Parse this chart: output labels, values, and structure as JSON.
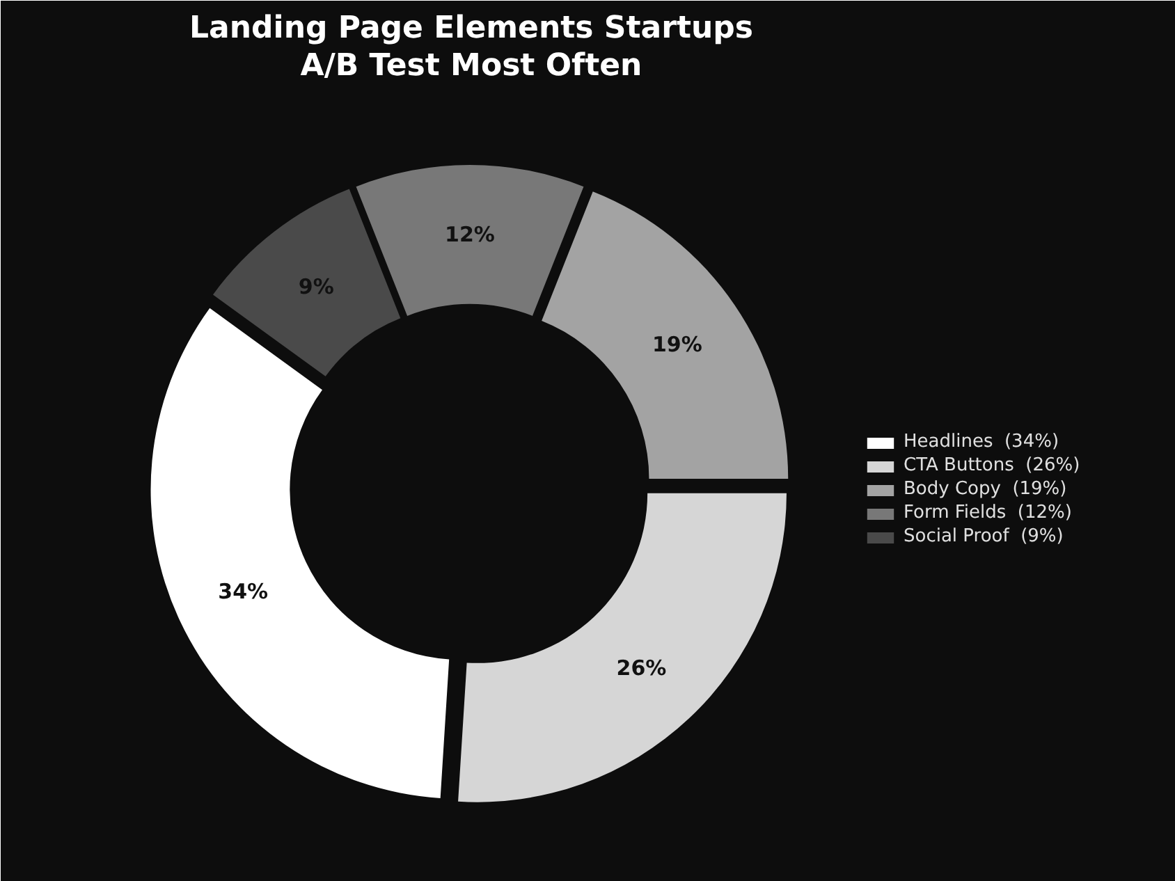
{
  "chart_data": {
    "type": "donut",
    "title": "Landing Page Elements Startups\nA/B Test Most Often",
    "categories": [
      "Headlines  (34%)",
      "CTA Buttons  (26%)",
      "Body Copy  (19%)",
      "Form Fields  (12%)",
      "Social Proof  (9%)"
    ],
    "values": [
      34,
      26,
      19,
      12,
      9
    ],
    "value_labels": [
      "34%",
      "26%",
      "19%",
      "12%",
      "9%"
    ],
    "colors": [
      "#ffffff",
      "#d6d6d6",
      "#a3a3a3",
      "#787878",
      "#4a4a4a"
    ],
    "legend": "right"
  }
}
